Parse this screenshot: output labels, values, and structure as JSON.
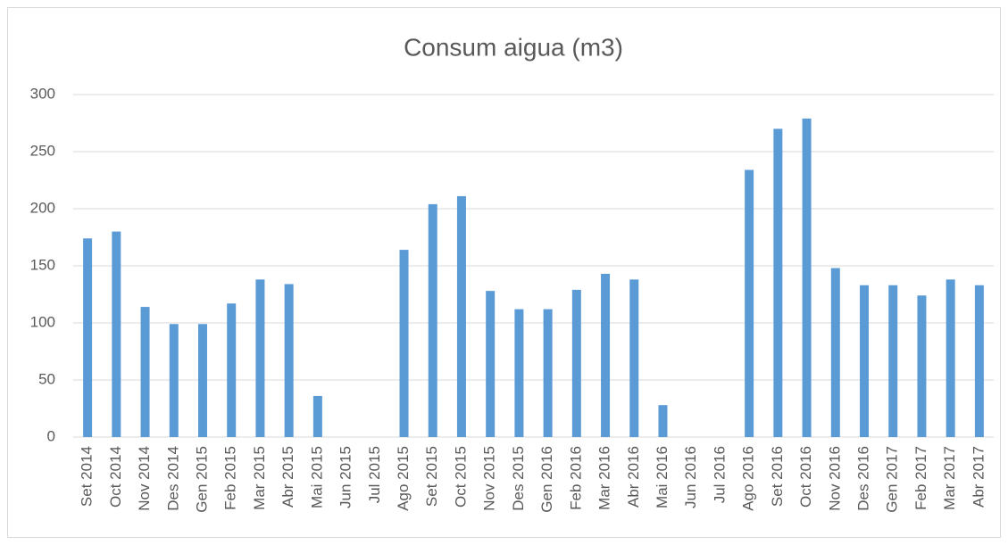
{
  "chart_data": {
    "type": "bar",
    "title": "Consum aigua (m3)",
    "categories": [
      "Set 2014",
      "Oct 2014",
      "Nov 2014",
      "Des 2014",
      "Gen 2015",
      "Feb 2015",
      "Mar 2015",
      "Abr 2015",
      "Mai 2015",
      "Jun 2015",
      "Jul 2015",
      "Ago 2015",
      "Set 2015",
      "Oct 2015",
      "Nov 2015",
      "Des 2015",
      "Gen 2016",
      "Feb 2016",
      "Mar 2016",
      "Abr 2016",
      "Mai 2016",
      "Jun 2016",
      "Jul 2016",
      "Ago 2016",
      "Set 2016",
      "Oct 2016",
      "Nov 2016",
      "Des 2016",
      "Gen 2017",
      "Feb 2017",
      "Mar 2017",
      "Abr 2017"
    ],
    "values": [
      174,
      180,
      114,
      99,
      99,
      117,
      138,
      134,
      36,
      null,
      null,
      164,
      204,
      211,
      128,
      112,
      112,
      129,
      143,
      138,
      28,
      null,
      null,
      234,
      270,
      279,
      148,
      133,
      133,
      124,
      138,
      133
    ],
    "color": "#5b9bd5",
    "ylim": [
      0,
      300
    ],
    "yticks": [
      0,
      50,
      100,
      150,
      200,
      250,
      300
    ],
    "grid": true
  }
}
